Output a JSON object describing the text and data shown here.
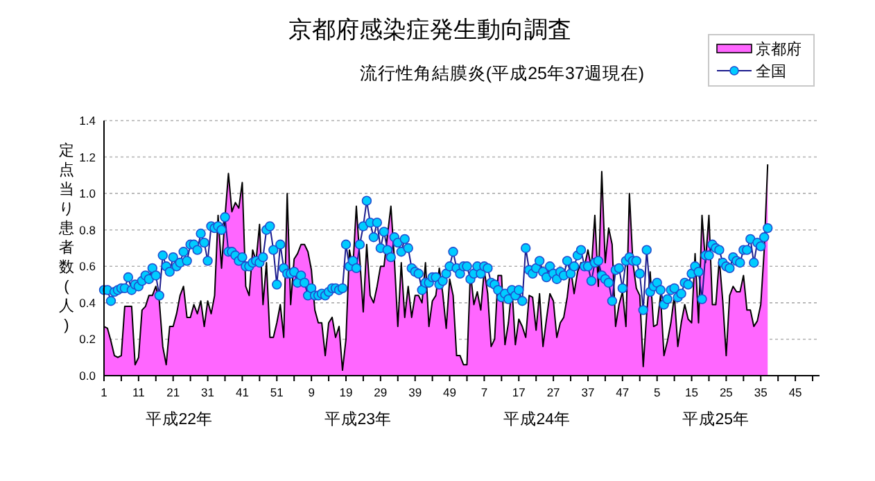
{
  "chart_data": {
    "type": "line",
    "title": "京都府感染症発生動向調査",
    "subtitle": "流行性角結膜炎(平成25年37週現在)",
    "ylabel": "定点当り患者数(人)",
    "categories": [
      "1",
      null,
      null,
      null,
      null,
      null,
      null,
      null,
      null,
      null,
      "11",
      null,
      null,
      null,
      null,
      null,
      null,
      null,
      null,
      null,
      "21",
      null,
      null,
      null,
      null,
      null,
      null,
      null,
      null,
      null,
      "31",
      null,
      null,
      null,
      null,
      null,
      null,
      null,
      null,
      null,
      "41",
      null,
      null,
      null,
      null,
      null,
      null,
      null,
      null,
      null,
      "51",
      null,
      null,
      null,
      null,
      null,
      null,
      null,
      null,
      null,
      "9",
      null,
      null,
      null,
      null,
      null,
      null,
      null,
      null,
      null,
      "19",
      null,
      null,
      null,
      null,
      null,
      null,
      null,
      null,
      null,
      "29",
      null,
      null,
      null,
      null,
      null,
      null,
      null,
      null,
      null,
      "39",
      null,
      null,
      null,
      null,
      null,
      null,
      null,
      null,
      null,
      "49",
      null,
      null,
      null,
      null,
      null,
      null,
      null,
      null,
      null,
      "7",
      null,
      null,
      null,
      null,
      null,
      null,
      null,
      null,
      null,
      "17",
      null,
      null,
      null,
      null,
      null,
      null,
      null,
      null,
      null,
      "27",
      null,
      null,
      null,
      null,
      null,
      null,
      null,
      null,
      null,
      "37",
      null,
      null,
      null,
      null,
      null,
      null,
      null,
      null,
      null,
      "47",
      null,
      null,
      null,
      null,
      null,
      null,
      null,
      null,
      null,
      "5",
      null,
      null,
      null,
      null,
      null,
      null,
      null,
      null,
      null,
      "15",
      null,
      null,
      null,
      null,
      null,
      null,
      null,
      null,
      null,
      "25",
      null,
      null,
      null,
      null,
      null,
      null,
      null,
      null,
      null,
      "35",
      null,
      null,
      null,
      null,
      null,
      null,
      null,
      null,
      null,
      "45",
      null,
      null,
      null,
      null,
      null,
      null,
      null
    ],
    "ylim": [
      0,
      1.4
    ],
    "yticks": [
      {
        "value": 0,
        "label": "0.0"
      },
      {
        "value": 0.2,
        "label": "0.2"
      },
      {
        "value": 0.4,
        "label": "0.4"
      },
      {
        "value": 0.6,
        "label": "0.6"
      },
      {
        "value": 0.8,
        "label": "0.8"
      },
      {
        "value": 1,
        "label": "1.0"
      },
      {
        "value": 1.2,
        "label": "1.2"
      },
      {
        "value": 1.4,
        "label": "1.4"
      }
    ],
    "grid": "y",
    "legend": "top right",
    "annotations": [
      "平成22年",
      "平成23年",
      "平成24年",
      "平成25年"
    ],
    "series": [
      {
        "name": "京都府",
        "type": "area",
        "color": "#ff66ff",
        "values": [
          0.27,
          0.26,
          0.19,
          0.11,
          0.1,
          0.11,
          0.38,
          0.38,
          0.38,
          0.06,
          0.1,
          0.36,
          0.38,
          0.44,
          0.44,
          0.49,
          0.41,
          0.16,
          0.06,
          0.27,
          0.27,
          0.34,
          0.44,
          0.49,
          0.32,
          0.32,
          0.39,
          0.34,
          0.41,
          0.27,
          0.41,
          0.34,
          0.44,
          0.88,
          0.59,
          0.87,
          1.11,
          0.9,
          0.95,
          0.92,
          1.06,
          0.49,
          0.44,
          0.69,
          0.63,
          0.83,
          0.39,
          0.62,
          0.21,
          0.21,
          0.29,
          0.39,
          0.21,
          1.0,
          0.39,
          0.64,
          0.67,
          0.72,
          0.72,
          0.68,
          0.58,
          0.36,
          0.29,
          0.29,
          0.11,
          0.29,
          0.32,
          0.21,
          0.27,
          0.03,
          0.2,
          0.69,
          0.59,
          0.93,
          0.64,
          0.35,
          0.72,
          0.44,
          0.4,
          0.49,
          0.6,
          0.6,
          0.77,
          0.93,
          0.64,
          0.27,
          0.62,
          0.32,
          0.49,
          0.32,
          0.44,
          0.44,
          0.4,
          0.62,
          0.27,
          0.41,
          0.44,
          0.59,
          0.45,
          0.26,
          0.53,
          0.44,
          0.11,
          0.11,
          0.06,
          0.06,
          0.57,
          0.39,
          0.46,
          0.36,
          0.58,
          0.45,
          0.16,
          0.2,
          0.55,
          0.55,
          0.17,
          0.29,
          0.49,
          0.17,
          0.31,
          0.27,
          0.21,
          0.44,
          0.43,
          0.25,
          0.45,
          0.16,
          0.31,
          0.45,
          0.41,
          0.21,
          0.29,
          0.32,
          0.43,
          0.59,
          0.45,
          0.57,
          0.62,
          0.6,
          0.69,
          0.59,
          0.88,
          0.49,
          1.12,
          0.62,
          0.81,
          0.72,
          0.27,
          0.39,
          0.46,
          0.27,
          1.0,
          0.62,
          0.48,
          0.44,
          0.05,
          0.34,
          0.57,
          0.27,
          0.28,
          0.44,
          0.11,
          0.19,
          0.29,
          0.44,
          0.16,
          0.29,
          0.39,
          0.31,
          0.29,
          0.67,
          0.29,
          0.88,
          0.62,
          0.88,
          0.39,
          0.39,
          0.64,
          0.41,
          0.11,
          0.44,
          0.49,
          0.46,
          0.46,
          0.55,
          0.36,
          0.36,
          0.27,
          0.3,
          0.39,
          0.69,
          1.16,
          null,
          null,
          null,
          null,
          null,
          null,
          null,
          null,
          null,
          null,
          null,
          null,
          null,
          null,
          null
        ]
      },
      {
        "name": "全国",
        "color": "#00ccff",
        "marker": "circle",
        "values": [
          0.47,
          0.47,
          0.41,
          0.46,
          0.47,
          0.48,
          0.48,
          0.54,
          0.47,
          0.5,
          0.49,
          0.52,
          0.55,
          0.53,
          0.59,
          0.55,
          0.44,
          0.66,
          0.6,
          0.57,
          0.65,
          0.6,
          0.62,
          0.68,
          0.63,
          0.72,
          0.72,
          0.69,
          0.78,
          0.73,
          0.63,
          0.82,
          0.81,
          0.82,
          0.8,
          0.87,
          0.68,
          0.68,
          0.66,
          0.63,
          0.65,
          0.6,
          0.6,
          0.62,
          0.63,
          0.62,
          0.65,
          0.8,
          0.82,
          0.69,
          0.5,
          0.72,
          0.59,
          0.56,
          0.56,
          0.57,
          0.51,
          0.55,
          0.51,
          0.44,
          0.48,
          0.44,
          0.44,
          0.45,
          0.44,
          0.46,
          0.48,
          0.48,
          0.47,
          0.48,
          0.72,
          0.6,
          0.63,
          0.59,
          0.72,
          0.82,
          0.96,
          0.84,
          0.76,
          0.84,
          0.7,
          0.79,
          0.69,
          0.65,
          0.76,
          0.73,
          0.68,
          0.75,
          0.7,
          0.59,
          0.57,
          0.56,
          0.47,
          0.51,
          0.51,
          0.54,
          0.54,
          0.5,
          0.52,
          0.56,
          0.6,
          0.68,
          0.59,
          0.56,
          0.6,
          0.6,
          0.53,
          0.56,
          0.6,
          0.56,
          0.6,
          0.59,
          0.51,
          0.5,
          0.47,
          0.43,
          0.45,
          0.42,
          0.47,
          0.44,
          0.47,
          0.41,
          0.7,
          0.58,
          0.56,
          0.59,
          0.63,
          0.57,
          0.54,
          0.6,
          0.56,
          0.53,
          0.57,
          0.55,
          0.63,
          0.56,
          0.6,
          0.66,
          0.69,
          0.6,
          0.6,
          0.52,
          0.62,
          0.63,
          0.55,
          0.53,
          0.51,
          0.41,
          0.58,
          0.59,
          0.48,
          0.63,
          0.65,
          0.63,
          0.63,
          0.56,
          0.36,
          0.69,
          0.46,
          0.49,
          0.51,
          0.47,
          0.39,
          0.42,
          0.47,
          0.48,
          0.43,
          0.45,
          0.51,
          0.5,
          0.56,
          0.6,
          0.57,
          0.42,
          0.66,
          0.66,
          0.72,
          0.7,
          0.69,
          0.62,
          0.6,
          0.59,
          0.65,
          0.63,
          0.62,
          0.69,
          0.69,
          0.75,
          0.62,
          0.73,
          0.71,
          0.76,
          0.81,
          null,
          null,
          null,
          null,
          null,
          null,
          null,
          null,
          null,
          null,
          null,
          null,
          null,
          null,
          null
        ]
      }
    ]
  }
}
